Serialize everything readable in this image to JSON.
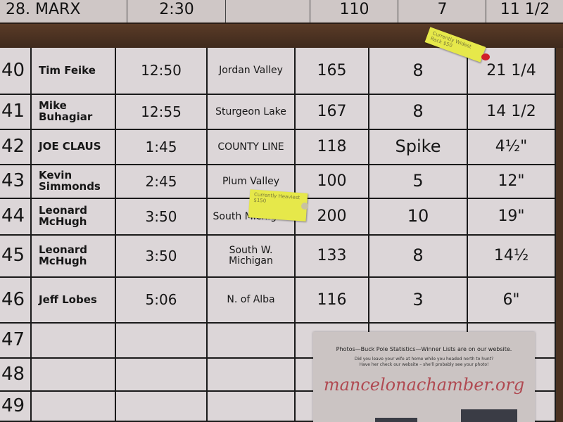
{
  "top_row": {
    "number": "28.",
    "name": "MARX",
    "time": "2:30",
    "location": "",
    "weight": "110",
    "points": "7",
    "spread": "11 1/2"
  },
  "rows": [
    {
      "number": "40",
      "name": "Tim Feike",
      "time": "12:50",
      "location": "Jordan Valley",
      "weight": "165",
      "points": "8",
      "spread": "21 1/4"
    },
    {
      "number": "41",
      "name": "Mike Buhagiar",
      "time": "12:55",
      "location": "Sturgeon Lake",
      "weight": "167",
      "points": "8",
      "spread": "14 1/2"
    },
    {
      "number": "42",
      "name": "JOE CLAUS",
      "time": "1:45",
      "location": "COUNTY LINE",
      "weight": "118",
      "points": "Spike",
      "spread": "4½\""
    },
    {
      "number": "43",
      "name": "Kevin Simmonds",
      "time": "2:45",
      "location": "Plum Valley",
      "weight": "100",
      "points": "5",
      "spread": "12\""
    },
    {
      "number": "44",
      "name": "Leonard McHugh",
      "time": "3:50",
      "location": "South Michigan",
      "weight": "200",
      "points": "10",
      "spread": "19\""
    },
    {
      "number": "45",
      "name": "Leonard McHugh",
      "time": "3:50",
      "location": "South W. Michigan",
      "weight": "133",
      "points": "8",
      "spread": "14½"
    },
    {
      "number": "46",
      "name": "Jeff Lobes",
      "time": "5:06",
      "location": "N. of Alba",
      "weight": "116",
      "points": "3",
      "spread": "6\""
    },
    {
      "number": "47",
      "name": "",
      "time": "",
      "location": "",
      "weight": "",
      "points": "",
      "spread": ""
    },
    {
      "number": "48",
      "name": "",
      "time": "",
      "location": "",
      "weight": "",
      "points": "",
      "spread": ""
    },
    {
      "number": "49",
      "name": "",
      "time": "",
      "location": "",
      "weight": "",
      "points": "",
      "spread": ""
    }
  ],
  "tags": {
    "rack": "Currently Widest Rack $50",
    "heaviest": "Currently Heaviest $150"
  },
  "poster": {
    "headline": "Photos—Buck Pole Statistics—Winner Lists are on our website.",
    "line1": "Did you leave your wife at home while you headed north to hunt?",
    "line2": "Have her check our website – she'll probably see your photo!",
    "url": "mancelonachamber.org"
  },
  "colors": {
    "tag": "#e6e84a",
    "url": "#b04a52",
    "pin": "#d0202a"
  }
}
